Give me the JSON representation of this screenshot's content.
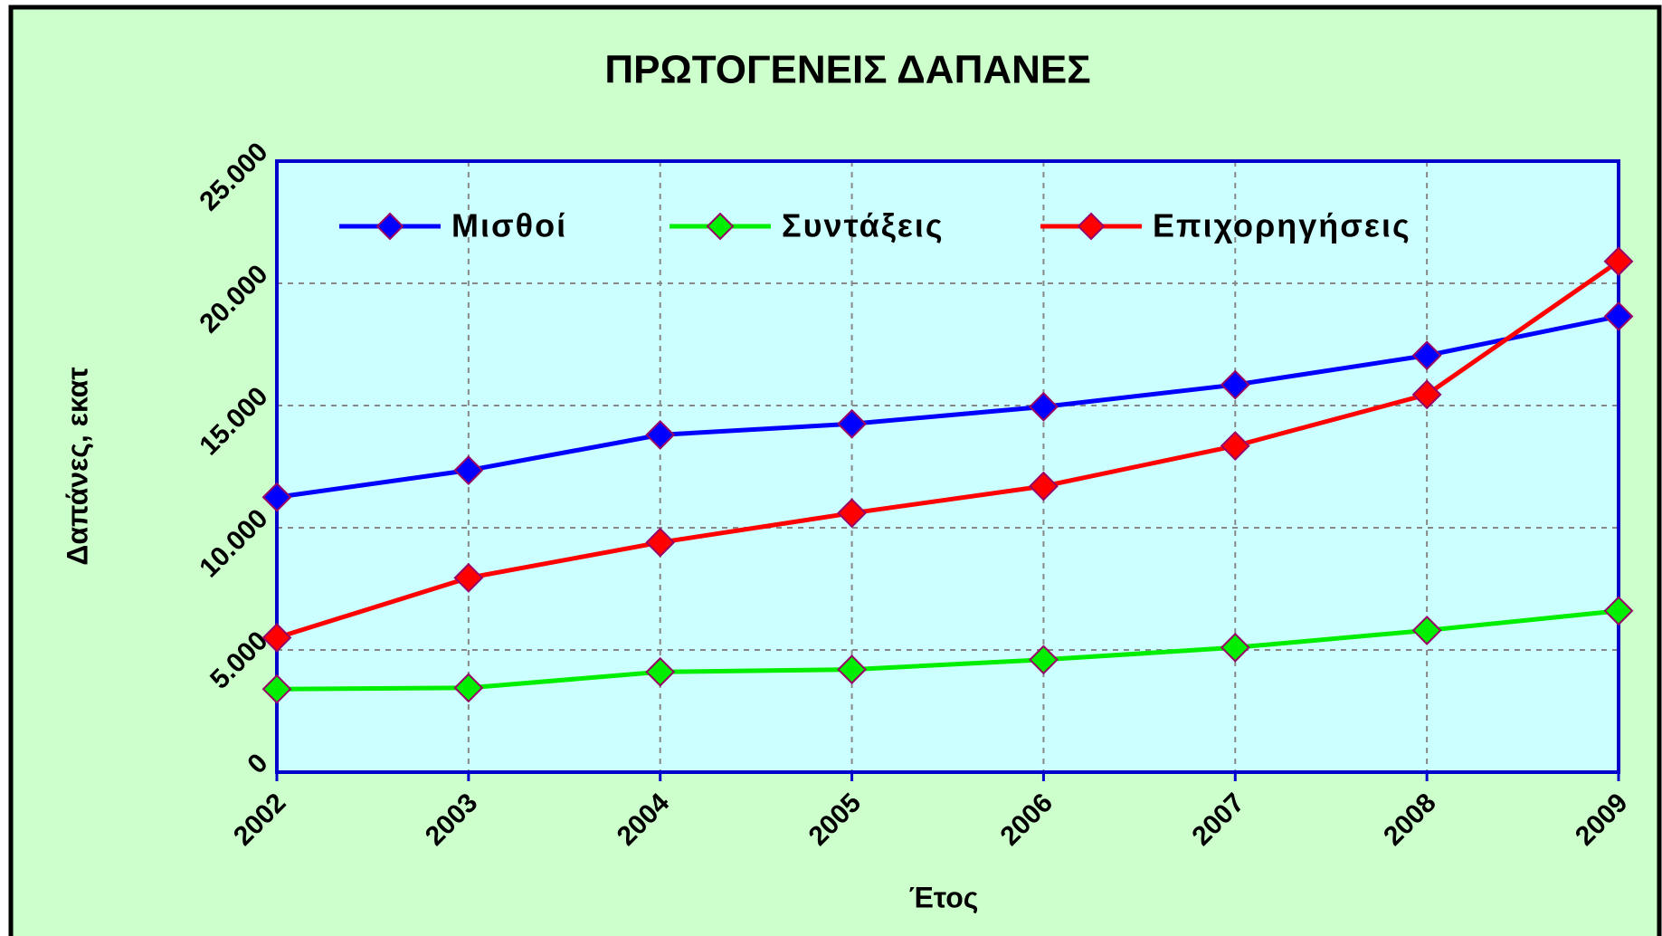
{
  "chart_data": {
    "type": "line",
    "title": "ΠΡΩΤΟΓΕΝΕΙΣ ΔΑΠΑΝΕΣ",
    "x_label": "Έτος",
    "y_label": "Δαπάνες, εκατ",
    "categories": [
      "2002",
      "2003",
      "2004",
      "2005",
      "2006",
      "2007",
      "2008",
      "2009"
    ],
    "series": [
      {
        "name": "Μισθοί",
        "color": "#0000ff",
        "values": [
          11250,
          12350,
          13800,
          14250,
          14950,
          15850,
          17050,
          18650
        ]
      },
      {
        "name": "Συντάξεις",
        "color": "#00ee00",
        "values": [
          3400,
          3450,
          4100,
          4200,
          4600,
          5100,
          5800,
          6600
        ]
      },
      {
        "name": "Επιχορηγήσεις",
        "color": "#ff0000",
        "values": [
          5500,
          7950,
          9400,
          10600,
          11700,
          13350,
          15450,
          20900
        ]
      }
    ],
    "ylim": [
      0,
      25000
    ],
    "yticks": [
      {
        "value": 0,
        "label": "0"
      },
      {
        "value": 5000,
        "label": "5.000"
      },
      {
        "value": 10000,
        "label": "10.000"
      },
      {
        "value": 15000,
        "label": "15.000"
      },
      {
        "value": 20000,
        "label": "20.000"
      },
      {
        "value": 25000,
        "label": "25.000"
      }
    ],
    "grid": true,
    "legend": "top"
  }
}
